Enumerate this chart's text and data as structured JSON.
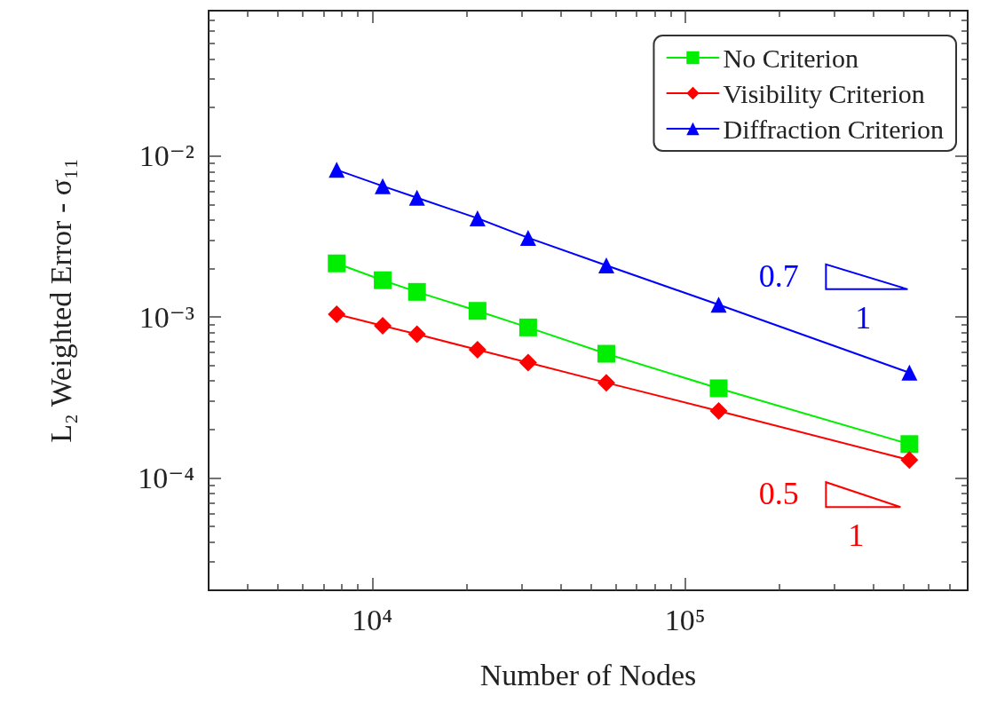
{
  "chart_data": {
    "type": "line",
    "xlabel": "Number of Nodes",
    "ylabel": "L₂ Weighted Error - σ₁₁",
    "x": [
      7700,
      10800,
      13900,
      21700,
      31500,
      56000,
      128000,
      521000
    ],
    "series": [
      {
        "name": "No Criterion",
        "color": "#00ee00",
        "marker": "square",
        "values": [
          0.00215,
          0.00169,
          0.00143,
          0.00109,
          0.00086,
          0.00059,
          0.00036,
          0.000162
        ]
      },
      {
        "name": "Visibility Criterion",
        "color": "#ff0000",
        "marker": "diamond",
        "values": [
          0.00104,
          0.00088,
          0.00078,
          0.000625,
          0.00052,
          0.00039,
          0.00026,
          0.000129
        ]
      },
      {
        "name": "Diffraction Criterion",
        "color": "#0000ff",
        "marker": "triangle",
        "values": [
          0.0082,
          0.0065,
          0.0055,
          0.0041,
          0.0031,
          0.00209,
          0.00119,
          0.00045
        ]
      }
    ],
    "log": "xy",
    "xlim": [
      3000,
      800000
    ],
    "ylim": [
      2e-05,
      0.08
    ],
    "xticks": [
      {
        "value": 10000,
        "label": "10⁴"
      },
      {
        "value": 100000,
        "label": "10⁵"
      }
    ],
    "yticks": [
      {
        "value": 0.0001,
        "label": "10⁻⁴"
      },
      {
        "value": 0.001,
        "label": "10⁻³"
      },
      {
        "value": 0.01,
        "label": "10⁻²"
      }
    ],
    "grid": false,
    "legend": "top right",
    "line_style": "solid",
    "annotations": [
      "0.7",
      "1",
      "0.5",
      "1"
    ]
  }
}
